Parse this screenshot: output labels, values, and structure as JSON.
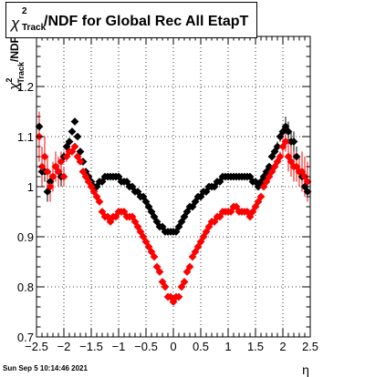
{
  "title": {
    "chi": "χ",
    "sup": "2",
    "sub": "Track",
    "text": "/NDF for Global Rec All EtapT"
  },
  "footer": "Sun Sep  5 10:14:46 2021",
  "chart_data": {
    "type": "scatter",
    "title": "χ²_Track/NDF for Global Rec All EtapT",
    "xlabel": "η",
    "ylabel": "χ²_Track/NDF",
    "xlim": [
      -2.5,
      2.5
    ],
    "ylim": [
      0.7,
      1.3
    ],
    "xticks": [
      "−2.5",
      "−2",
      "−1.5",
      "−1",
      "−0.5",
      "0",
      "0.5",
      "1",
      "1.5",
      "2",
      "2.5"
    ],
    "yticks": [
      "0.7",
      "0.8",
      "0.9",
      "1",
      "1.1",
      "1.2"
    ],
    "grid": true,
    "x": [
      -2.45,
      -2.4,
      -2.35,
      -2.3,
      -2.25,
      -2.2,
      -2.15,
      -2.1,
      -2.05,
      -2.0,
      -1.95,
      -1.9,
      -1.85,
      -1.8,
      -1.75,
      -1.7,
      -1.65,
      -1.6,
      -1.55,
      -1.5,
      -1.45,
      -1.4,
      -1.35,
      -1.3,
      -1.25,
      -1.2,
      -1.15,
      -1.1,
      -1.05,
      -1.0,
      -0.95,
      -0.9,
      -0.85,
      -0.8,
      -0.75,
      -0.7,
      -0.65,
      -0.6,
      -0.55,
      -0.5,
      -0.45,
      -0.4,
      -0.35,
      -0.3,
      -0.25,
      -0.2,
      -0.15,
      -0.1,
      -0.05,
      0.0,
      0.05,
      0.1,
      0.15,
      0.2,
      0.25,
      0.3,
      0.35,
      0.4,
      0.45,
      0.5,
      0.55,
      0.6,
      0.65,
      0.7,
      0.75,
      0.8,
      0.85,
      0.9,
      0.95,
      1.0,
      1.05,
      1.1,
      1.15,
      1.2,
      1.25,
      1.3,
      1.35,
      1.4,
      1.45,
      1.5,
      1.55,
      1.6,
      1.65,
      1.7,
      1.75,
      1.8,
      1.85,
      1.9,
      1.95,
      2.0,
      2.05,
      2.1,
      2.15,
      2.2,
      2.25,
      2.3,
      2.35,
      2.4,
      2.45
    ],
    "series": [
      {
        "color": "#000000",
        "values": [
          1.12,
          1.03,
          1.03,
          0.99,
          1.01,
          1.02,
          1.04,
          1.03,
          1.02,
          1.06,
          1.08,
          1.09,
          1.11,
          1.13,
          1.1,
          1.07,
          1.05,
          1.03,
          1.02,
          1.01,
          1.0,
          1.0,
          1.01,
          1.01,
          1.02,
          1.02,
          1.02,
          1.02,
          1.02,
          1.02,
          1.01,
          1.01,
          1.01,
          1.0,
          1.0,
          0.99,
          0.99,
          0.98,
          0.98,
          0.97,
          0.96,
          0.95,
          0.94,
          0.93,
          0.92,
          0.92,
          0.91,
          0.91,
          0.91,
          0.91,
          0.91,
          0.92,
          0.93,
          0.94,
          0.95,
          0.96,
          0.96,
          0.97,
          0.98,
          0.98,
          0.99,
          0.99,
          1.0,
          1.0,
          1.0,
          1.01,
          1.01,
          1.02,
          1.02,
          1.02,
          1.02,
          1.02,
          1.02,
          1.02,
          1.02,
          1.02,
          1.02,
          1.02,
          1.01,
          1.01,
          1.0,
          1.01,
          1.02,
          1.03,
          1.04,
          1.06,
          1.07,
          1.08,
          1.1,
          1.11,
          1.12,
          1.11,
          1.09,
          1.09,
          1.06,
          1.03,
          1.02,
          1.0,
          0.99
        ],
        "errors": [
          0.02,
          0.02,
          0.02,
          0.02,
          0.02,
          0.02,
          0.02,
          0.02,
          0.02,
          0.01,
          0.01,
          0.0,
          0.0,
          0.0,
          0.0,
          0.0,
          0.0,
          0.0,
          0.0,
          0.0,
          0.0,
          0.0,
          0.0,
          0.0,
          0.0,
          0.0,
          0.0,
          0.0,
          0.0,
          0.0,
          0.0,
          0.0,
          0.0,
          0.0,
          0.0,
          0.0,
          0.0,
          0.0,
          0.0,
          0.0,
          0.0,
          0.0,
          0.0,
          0.0,
          0.0,
          0.0,
          0.0,
          0.0,
          0.0,
          0.0,
          0.0,
          0.0,
          0.0,
          0.0,
          0.0,
          0.0,
          0.0,
          0.0,
          0.0,
          0.0,
          0.0,
          0.0,
          0.0,
          0.0,
          0.0,
          0.0,
          0.0,
          0.0,
          0.0,
          0.0,
          0.0,
          0.0,
          0.0,
          0.0,
          0.0,
          0.0,
          0.0,
          0.0,
          0.0,
          0.0,
          0.0,
          0.0,
          0.0,
          0.0,
          0.0,
          0.0,
          0.0,
          0.01,
          0.01,
          0.01,
          0.02,
          0.02,
          0.02,
          0.02,
          0.02,
          0.02,
          0.02,
          0.02,
          0.02
        ]
      },
      {
        "color": "#ff0000",
        "values": [
          1.1,
          1.04,
          1.06,
          1.03,
          1.0,
          1.02,
          1.04,
          1.03,
          1.05,
          1.02,
          1.06,
          1.07,
          1.07,
          1.08,
          1.06,
          1.05,
          1.03,
          1.02,
          1.01,
          1.0,
          0.99,
          0.98,
          0.97,
          0.95,
          0.94,
          0.94,
          0.93,
          0.94,
          0.94,
          0.95,
          0.95,
          0.95,
          0.94,
          0.94,
          0.94,
          0.93,
          0.92,
          0.91,
          0.9,
          0.89,
          0.88,
          0.87,
          0.86,
          0.84,
          0.83,
          0.81,
          0.8,
          0.78,
          0.78,
          0.77,
          0.78,
          0.78,
          0.8,
          0.81,
          0.83,
          0.84,
          0.86,
          0.87,
          0.88,
          0.89,
          0.9,
          0.91,
          0.92,
          0.93,
          0.93,
          0.94,
          0.94,
          0.95,
          0.95,
          0.95,
          0.95,
          0.96,
          0.96,
          0.95,
          0.95,
          0.95,
          0.95,
          0.94,
          0.95,
          0.96,
          0.97,
          0.98,
          1.0,
          1.01,
          1.02,
          1.03,
          1.04,
          1.05,
          1.06,
          1.08,
          1.09,
          1.06,
          1.05,
          1.04,
          1.04,
          1.03,
          1.03,
          1.02,
          1.01
        ],
        "errors": [
          0.05,
          0.04,
          0.04,
          0.03,
          0.03,
          0.03,
          0.03,
          0.03,
          0.02,
          0.02,
          0.01,
          0.01,
          0.0,
          0.0,
          0.0,
          0.0,
          0.0,
          0.0,
          0.0,
          0.0,
          0.0,
          0.0,
          0.0,
          0.0,
          0.0,
          0.0,
          0.0,
          0.0,
          0.0,
          0.0,
          0.0,
          0.0,
          0.0,
          0.0,
          0.0,
          0.0,
          0.0,
          0.0,
          0.0,
          0.0,
          0.0,
          0.0,
          0.0,
          0.0,
          0.0,
          0.0,
          0.0,
          0.0,
          0.0,
          0.0,
          0.0,
          0.0,
          0.0,
          0.0,
          0.0,
          0.0,
          0.0,
          0.0,
          0.0,
          0.0,
          0.0,
          0.0,
          0.0,
          0.0,
          0.0,
          0.0,
          0.0,
          0.0,
          0.0,
          0.0,
          0.0,
          0.0,
          0.0,
          0.0,
          0.0,
          0.0,
          0.0,
          0.0,
          0.0,
          0.0,
          0.0,
          0.0,
          0.0,
          0.0,
          0.0,
          0.0,
          0.01,
          0.01,
          0.01,
          0.02,
          0.02,
          0.03,
          0.03,
          0.03,
          0.03,
          0.03,
          0.04,
          0.04,
          0.04
        ]
      }
    ]
  }
}
